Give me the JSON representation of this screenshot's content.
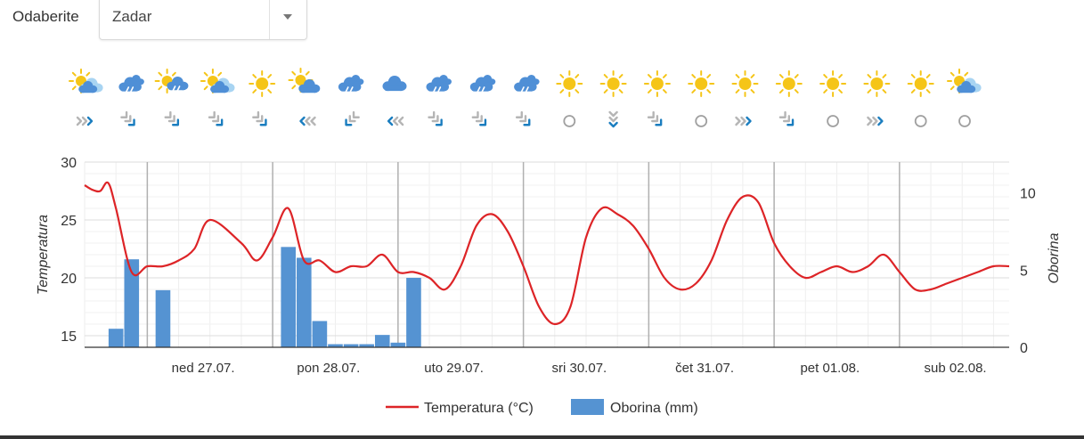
{
  "selector": {
    "label": "Odaberite",
    "value": "Zadar"
  },
  "forecast": {
    "weather_icons": [
      "partly-cloudy-icon",
      "rain-cloud-icon",
      "sun-rain-cloud-icon",
      "partly-cloudy-icon",
      "sun-icon",
      "sun-cloud-icon",
      "rain-cloud-icon",
      "cloud-icon",
      "rain-cloud-icon",
      "rain-cloud-icon",
      "rain-cloud-icon",
      "sun-icon",
      "sun-icon",
      "sun-icon",
      "sun-icon",
      "sun-icon",
      "sun-icon",
      "sun-icon",
      "sun-icon",
      "sun-icon",
      "partly-cloudy-icon"
    ],
    "weather_icon_colors": {
      "sun": "#f5c518",
      "cloud": "#4f8fd6",
      "light_cloud": "#a8d4f2",
      "rain": "#3a6fb0"
    },
    "wind_directions": [
      "east",
      "southeast",
      "southeast",
      "southeast",
      "southeast",
      "west",
      "southwest",
      "west",
      "southeast",
      "southeast",
      "southeast",
      "calm",
      "south",
      "southeast",
      "calm",
      "east",
      "southeast",
      "calm",
      "east",
      "calm",
      "calm"
    ],
    "wind_icon_colors": {
      "head": "#1a7dbf",
      "tail": "#b5b5b5",
      "calm": "#a0a0a0"
    }
  },
  "chart_data": {
    "type": "line+bar",
    "x_axis": {
      "ticks": [
        "ned 27.07.",
        "pon 28.07.",
        "uto 29.07.",
        "sri 30.07.",
        "čet 31.07.",
        "pet 01.08.",
        "sub 02.08."
      ],
      "range_hours": [
        0,
        177
      ]
    },
    "y_left": {
      "label": "Temperatura",
      "range": [
        14,
        30
      ],
      "ticks": [
        15,
        20,
        25,
        30
      ]
    },
    "y_right": {
      "label": "Oborina",
      "range": [
        0,
        12
      ],
      "ticks": [
        0,
        5,
        10
      ]
    },
    "grid": true,
    "legend": {
      "position": "bottom-center"
    },
    "series": [
      {
        "name": "Temperatura (°C)",
        "type": "line",
        "axis": "left",
        "color": "#dd2427",
        "x": [
          0,
          1.5,
          3,
          4.5,
          6,
          9,
          12,
          15,
          18,
          21,
          24,
          30,
          33,
          36,
          39,
          42,
          45,
          48,
          51,
          54,
          57,
          60,
          63,
          66,
          69,
          72,
          75,
          78,
          81,
          84,
          87,
          90,
          93,
          96,
          99,
          102,
          105,
          108,
          111,
          114,
          117,
          120,
          123,
          126,
          129,
          132,
          135,
          138,
          141,
          144,
          147,
          150,
          153,
          156,
          159,
          162,
          165,
          168,
          171,
          174,
          177
        ],
        "y": [
          28.0,
          27.6,
          27.5,
          28.2,
          26.0,
          20.5,
          21.0,
          21.0,
          21.5,
          22.5,
          25.0,
          23.0,
          21.5,
          23.5,
          26.0,
          21.5,
          21.5,
          20.5,
          21.0,
          21.0,
          22.0,
          20.5,
          20.5,
          20.0,
          19.0,
          21.0,
          24.5,
          25.5,
          24.0,
          21.0,
          17.5,
          16.0,
          17.5,
          23.5,
          26.0,
          25.5,
          24.5,
          22.5,
          20.0,
          19.0,
          19.5,
          21.5,
          25.0,
          27.0,
          26.5,
          23.0,
          21.0,
          20.0,
          20.5,
          21.0,
          20.5,
          21.0,
          22.0,
          20.5,
          19.0,
          19.0,
          19.5,
          20.0,
          20.5,
          21.0,
          21.0
        ]
      },
      {
        "name": "Oborina (mm)",
        "type": "bar",
        "axis": "right",
        "color": "#5593d2",
        "x": [
          6,
          9,
          15,
          39,
          42,
          45,
          48,
          51,
          54,
          57,
          60,
          63
        ],
        "y": [
          1.2,
          5.7,
          3.7,
          6.5,
          5.8,
          1.7,
          0.2,
          0.2,
          0.2,
          0.8,
          0.3,
          4.5
        ]
      }
    ]
  }
}
